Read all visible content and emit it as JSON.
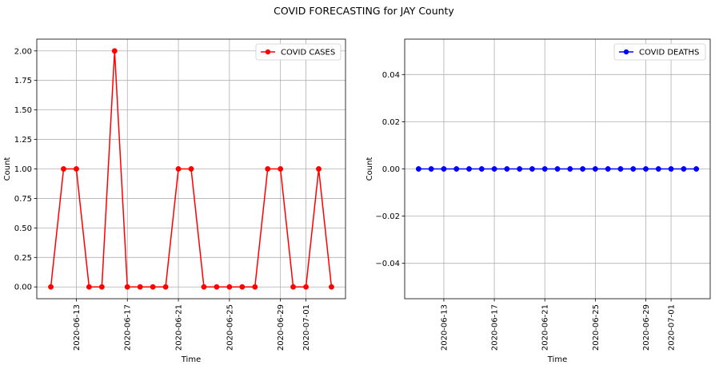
{
  "figure": {
    "title": "COVID FORECASTING for JAY County"
  },
  "chart_data": [
    {
      "type": "line",
      "xlabel": "Time",
      "ylabel": "Count",
      "x": [
        "2020-06-11",
        "2020-06-12",
        "2020-06-13",
        "2020-06-14",
        "2020-06-15",
        "2020-06-16",
        "2020-06-17",
        "2020-06-18",
        "2020-06-19",
        "2020-06-20",
        "2020-06-21",
        "2020-06-22",
        "2020-06-23",
        "2020-06-24",
        "2020-06-25",
        "2020-06-26",
        "2020-06-27",
        "2020-06-28",
        "2020-06-29",
        "2020-06-30",
        "2020-07-01",
        "2020-07-02",
        "2020-07-03"
      ],
      "series": [
        {
          "name": "COVID CASES",
          "color": "#ff0000",
          "marker": "circle",
          "values": [
            0,
            1,
            1,
            0,
            0,
            2,
            0,
            0,
            0,
            0,
            1,
            1,
            0,
            0,
            0,
            0,
            0,
            1,
            1,
            0,
            0,
            1,
            0
          ]
        }
      ],
      "xticks": [
        "2020-06-13",
        "2020-06-17",
        "2020-06-21",
        "2020-06-25",
        "2020-06-29",
        "2020-07-01"
      ],
      "yticks": [
        "0.00",
        "0.25",
        "0.50",
        "0.75",
        "1.00",
        "1.25",
        "1.50",
        "1.75",
        "2.00"
      ],
      "ytick_values": [
        0,
        0.25,
        0.5,
        0.75,
        1,
        1.25,
        1.5,
        1.75,
        2
      ],
      "ylim": [
        -0.1,
        2.1
      ],
      "grid": true,
      "legend": "upper right"
    },
    {
      "type": "line",
      "xlabel": "Time",
      "ylabel": "Count",
      "x": [
        "2020-06-11",
        "2020-06-12",
        "2020-06-13",
        "2020-06-14",
        "2020-06-15",
        "2020-06-16",
        "2020-06-17",
        "2020-06-18",
        "2020-06-19",
        "2020-06-20",
        "2020-06-21",
        "2020-06-22",
        "2020-06-23",
        "2020-06-24",
        "2020-06-25",
        "2020-06-26",
        "2020-06-27",
        "2020-06-28",
        "2020-06-29",
        "2020-06-30",
        "2020-07-01",
        "2020-07-02",
        "2020-07-03"
      ],
      "series": [
        {
          "name": "COVID DEATHS",
          "color": "#0000ff",
          "marker": "circle",
          "values": [
            0,
            0,
            0,
            0,
            0,
            0,
            0,
            0,
            0,
            0,
            0,
            0,
            0,
            0,
            0,
            0,
            0,
            0,
            0,
            0,
            0,
            0,
            0
          ]
        }
      ],
      "xticks": [
        "2020-06-13",
        "2020-06-17",
        "2020-06-21",
        "2020-06-25",
        "2020-06-29",
        "2020-07-01"
      ],
      "yticks": [
        "−0.04",
        "−0.02",
        "0.00",
        "0.02",
        "0.04"
      ],
      "ytick_values": [
        -0.04,
        -0.02,
        0,
        0.02,
        0.04
      ],
      "ylim": [
        -0.055,
        0.055
      ],
      "grid": true,
      "legend": "upper right"
    }
  ]
}
